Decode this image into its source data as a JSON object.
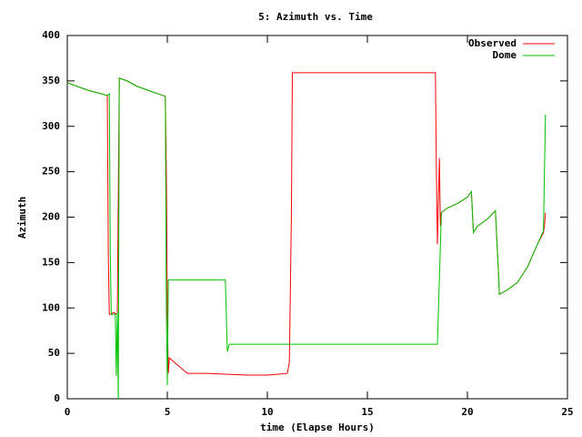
{
  "chart_data": {
    "type": "line",
    "title": "5: Azimuth vs. Time",
    "x_label": "time (Elapse Hours)",
    "y_label": "Azimuth",
    "xlim": [
      0,
      25
    ],
    "xticks": [
      0,
      5,
      10,
      15,
      20,
      25
    ],
    "ylim": [
      0,
      400
    ],
    "yticks": [
      0,
      50,
      100,
      150,
      200,
      250,
      300,
      350,
      400
    ],
    "grid": false,
    "legend": "top right",
    "series": [
      {
        "name": "Observed",
        "color": "#ff0000",
        "x": [
          0,
          0.5,
          1,
          1.5,
          2.0,
          2.05,
          2.1,
          2.2,
          2.3,
          2.4,
          2.5,
          2.6,
          3,
          3.5,
          4,
          4.5,
          4.9,
          4.95,
          5.0,
          5.05,
          5.1,
          6,
          7,
          8,
          9,
          10,
          10.5,
          11,
          11.1,
          11.2,
          11.25,
          18.4,
          18.45,
          18.5,
          18.6,
          18.65,
          18.7,
          19,
          19.5,
          20,
          20.2,
          20.3,
          20.5,
          21,
          21.4,
          21.55,
          21.6,
          22,
          22.5,
          23,
          23.5,
          23.8,
          23.85,
          23.9
        ],
        "values": [
          348,
          344,
          340,
          337,
          334,
          160,
          93,
          93,
          95,
          94,
          93,
          353,
          350,
          344,
          340,
          336,
          333,
          250,
          95,
          28,
          45,
          28,
          28,
          27,
          26,
          26,
          27,
          28,
          40,
          200,
          359,
          359,
          250,
          170,
          265,
          190,
          205,
          210,
          215,
          222,
          228,
          183,
          190,
          198,
          207,
          140,
          115,
          120,
          128,
          145,
          170,
          183,
          190,
          205
        ]
      },
      {
        "name": "Dome",
        "color": "#00c000",
        "x": [
          0,
          0.5,
          1,
          1.5,
          2.0,
          2.1,
          2.15,
          2.2,
          2.4,
          2.45,
          2.5,
          2.55,
          2.6,
          3,
          3.5,
          4,
          4.5,
          4.9,
          4.95,
          5.0,
          5.05,
          6,
          7,
          7.9,
          8.0,
          8.1,
          10,
          12,
          14,
          16,
          18.5,
          18.7,
          19,
          19.5,
          20,
          20.2,
          20.3,
          20.5,
          21,
          21.4,
          21.55,
          21.6,
          22,
          22.5,
          23,
          23.5,
          23.8,
          23.9
        ],
        "values": [
          348,
          344,
          340,
          337,
          334,
          336,
          160,
          93,
          93,
          25,
          95,
          0,
          353,
          350,
          344,
          340,
          336,
          333,
          100,
          15,
          131,
          131,
          131,
          131,
          52,
          60,
          60,
          60,
          60,
          60,
          60,
          205,
          210,
          215,
          222,
          228,
          183,
          190,
          198,
          207,
          140,
          115,
          120,
          128,
          145,
          170,
          185,
          313
        ]
      }
    ]
  }
}
